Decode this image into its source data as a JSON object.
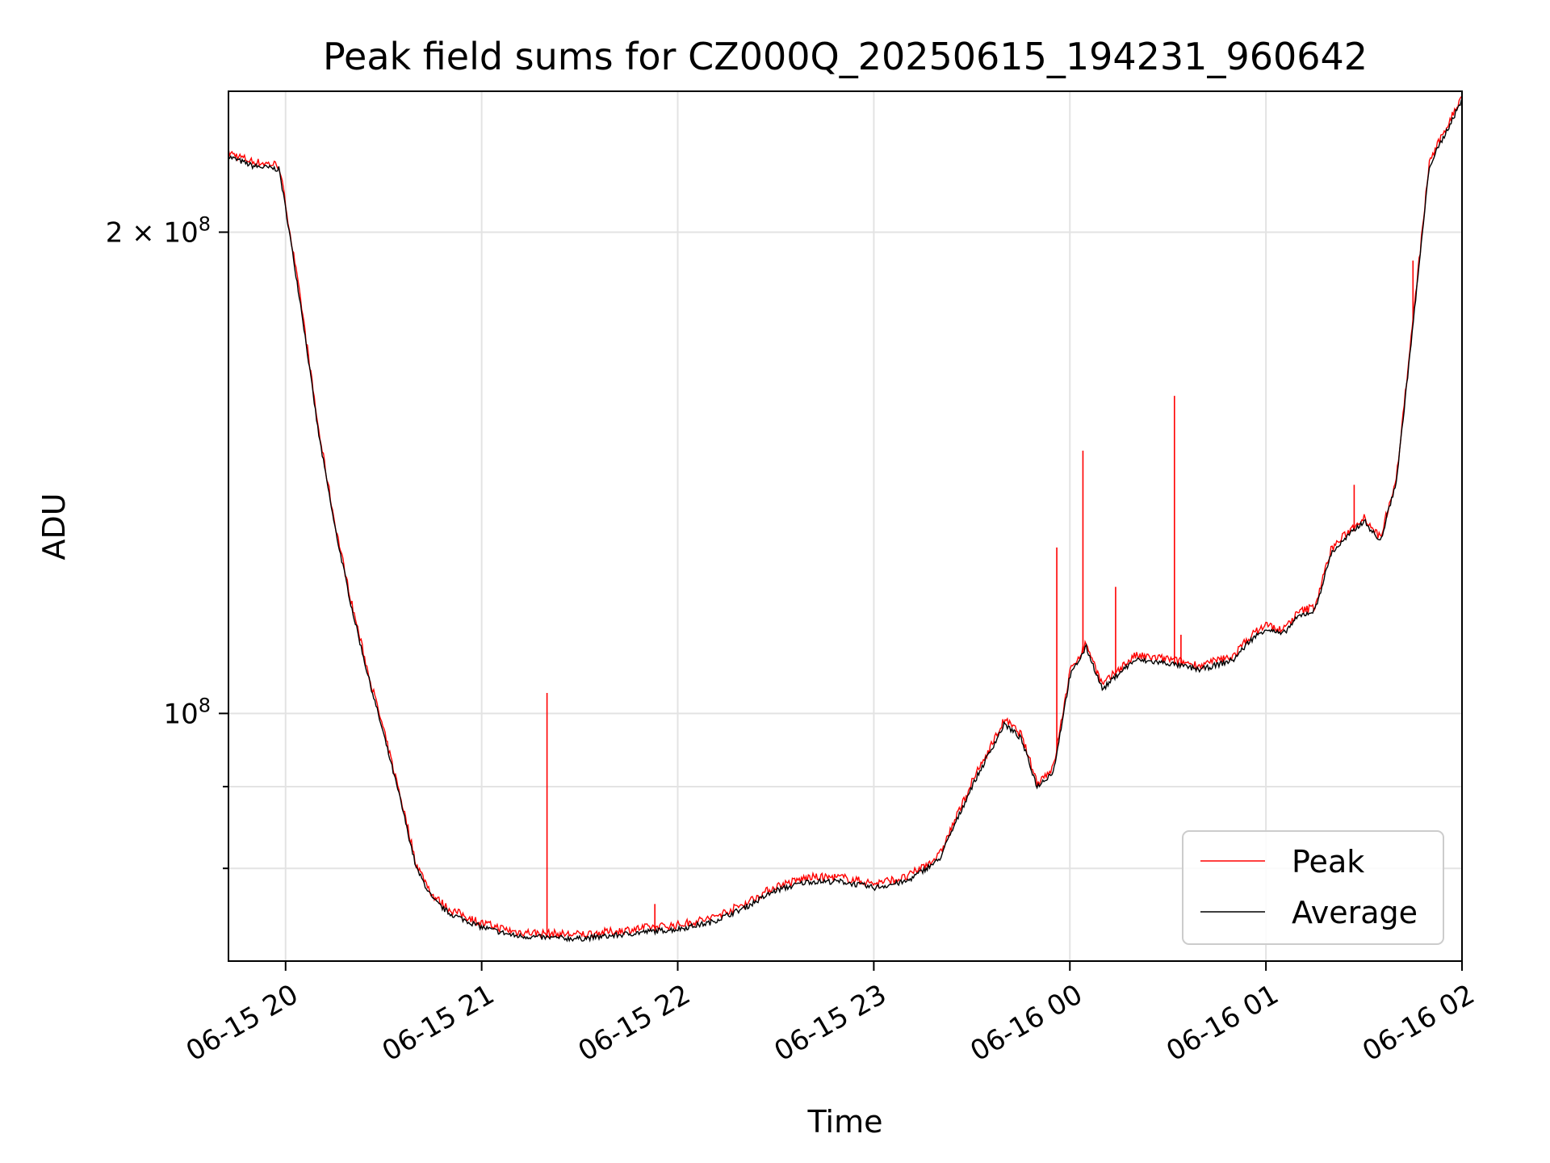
{
  "chart_data": {
    "type": "line",
    "title": "Peak field sums for CZ000Q_20250615_194231_960642",
    "xlabel": "Time",
    "ylabel": "ADU",
    "y_scale": "log",
    "ylim": [
      70000000,
      245000000
    ],
    "xlim": [
      "2025-06-15 19:42:31",
      "2025-06-16 02:00:00"
    ],
    "x_ticks": [
      "06-15 20",
      "06-15 21",
      "06-15 22",
      "06-15 23",
      "06-16 00",
      "06-16 01",
      "06-16 02"
    ],
    "y_ticks": [
      {
        "value": 100000000,
        "label_base": "10",
        "label_exp": "8",
        "label_prefix": ""
      },
      {
        "value": 200000000,
        "label_base": "10",
        "label_exp": "8",
        "label_prefix": "2 × "
      }
    ],
    "grid": true,
    "legend": "lower-right",
    "x": [
      "2025-06-15 19:42:31",
      "2025-06-15 19:50",
      "2025-06-15 19:58",
      "2025-06-15 20:00",
      "2025-06-15 20:05",
      "2025-06-15 20:10",
      "2025-06-15 20:15",
      "2025-06-15 20:20",
      "2025-06-15 20:25",
      "2025-06-15 20:30",
      "2025-06-15 20:35",
      "2025-06-15 20:40",
      "2025-06-15 20:45",
      "2025-06-15 20:50",
      "2025-06-15 21:00",
      "2025-06-15 21:10",
      "2025-06-15 21:20",
      "2025-06-15 21:30",
      "2025-06-15 21:40",
      "2025-06-15 21:50",
      "2025-06-15 22:00",
      "2025-06-15 22:10",
      "2025-06-15 22:20",
      "2025-06-15 22:30",
      "2025-06-15 22:40",
      "2025-06-15 22:50",
      "2025-06-15 23:00",
      "2025-06-15 23:10",
      "2025-06-15 23:20",
      "2025-06-15 23:30",
      "2025-06-15 23:40",
      "2025-06-15 23:45",
      "2025-06-15 23:50",
      "2025-06-15 23:55",
      "2025-06-16 00:00",
      "2025-06-16 00:05",
      "2025-06-16 00:10",
      "2025-06-16 00:15",
      "2025-06-16 00:20",
      "2025-06-16 00:30",
      "2025-06-16 00:40",
      "2025-06-16 00:50",
      "2025-06-16 00:55",
      "2025-06-16 01:00",
      "2025-06-16 01:05",
      "2025-06-16 01:10",
      "2025-06-16 01:15",
      "2025-06-16 01:20",
      "2025-06-16 01:25",
      "2025-06-16 01:30",
      "2025-06-16 01:35",
      "2025-06-16 01:40",
      "2025-06-16 01:45",
      "2025-06-16 01:50",
      "2025-06-16 02:00"
    ],
    "series": [
      {
        "name": "Average",
        "color": "#000000",
        "values": [
          223000000,
          220000000,
          219000000,
          207000000,
          178000000,
          150000000,
          131000000,
          117000000,
          106000000,
          97000000,
          88500000,
          80000000,
          76500000,
          75000000,
          73500000,
          72600000,
          72400000,
          72300000,
          72600000,
          73000000,
          73300000,
          74000000,
          75500000,
          77500000,
          78500000,
          78500000,
          77800000,
          78500000,
          81000000,
          90000000,
          98500000,
          96500000,
          90000000,
          92000000,
          105500000,
          110000000,
          103500000,
          106000000,
          108000000,
          107500000,
          106500000,
          108000000,
          111000000,
          113000000,
          112000000,
          115000000,
          116000000,
          126000000,
          129000000,
          132000000,
          128000000,
          140000000,
          175000000,
          220000000,
          242000000
        ]
      },
      {
        "name": "Peak",
        "color": "#ff0000",
        "spikes": [
          {
            "x": "2025-06-15 21:20",
            "y": 103000000
          },
          {
            "x": "2025-06-15 21:53",
            "y": 76000000
          },
          {
            "x": "2025-06-15 23:56",
            "y": 127000000
          },
          {
            "x": "2025-06-16 00:04",
            "y": 146000000
          },
          {
            "x": "2025-06-16 00:14",
            "y": 120000000
          },
          {
            "x": "2025-06-16 00:34",
            "y": 112000000
          },
          {
            "x": "2025-06-16 00:32",
            "y": 158000000
          },
          {
            "x": "2025-06-16 01:27",
            "y": 139000000
          },
          {
            "x": "2025-06-16 01:45",
            "y": 192000000
          }
        ]
      }
    ]
  }
}
